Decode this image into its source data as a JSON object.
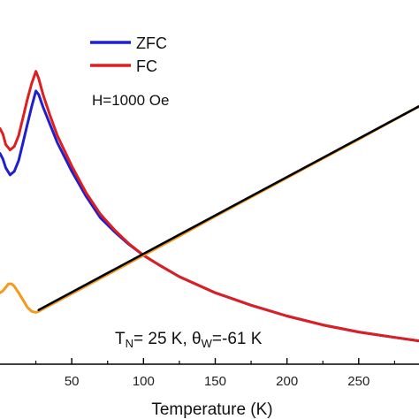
{
  "chart_data": {
    "type": "line",
    "xlabel": "Temperature (K)",
    "x_ticks": [
      50,
      100,
      150,
      200,
      250
    ],
    "xlim": [
      0,
      292
    ],
    "legend": {
      "position": "top-center",
      "entries": [
        "ZFC",
        "FC"
      ]
    },
    "annotations": {
      "field": "H=1000 Oe",
      "tn_symbol": "T",
      "tn_sub": "N",
      "tn_value": "= 25 K, ",
      "theta_symbol": "θ",
      "theta_sub": "W",
      "theta_value": "=-61 K"
    },
    "colors": {
      "zfc": "#1f1fcf",
      "fc": "#dd1f1f",
      "inverse": "#f39a1c",
      "fit": "#000000"
    },
    "series": [
      {
        "name": "ZFC",
        "color": "#1f1fcf",
        "x": [
          0,
          2,
          4,
          7,
          10,
          13,
          16,
          19,
          22,
          25,
          27,
          30,
          35,
          40,
          50,
          60,
          70,
          80,
          90,
          100,
          110,
          125,
          150,
          175,
          200,
          225,
          250,
          275,
          292
        ],
        "y": [
          0.59,
          0.575,
          0.55,
          0.53,
          0.54,
          0.57,
          0.62,
          0.67,
          0.72,
          0.765,
          0.755,
          0.72,
          0.67,
          0.62,
          0.54,
          0.47,
          0.41,
          0.37,
          0.335,
          0.305,
          0.28,
          0.245,
          0.2,
          0.165,
          0.135,
          0.11,
          0.09,
          0.075,
          0.065
        ]
      },
      {
        "name": "FC",
        "color": "#dd1f1f",
        "x": [
          0,
          2,
          4,
          7,
          10,
          13,
          16,
          19,
          22,
          25,
          27,
          30,
          35,
          40,
          50,
          60,
          70,
          80,
          90,
          100,
          110,
          125,
          150,
          175,
          200,
          225,
          250,
          275,
          292
        ],
        "y": [
          0.66,
          0.645,
          0.615,
          0.6,
          0.61,
          0.64,
          0.69,
          0.74,
          0.785,
          0.82,
          0.8,
          0.755,
          0.695,
          0.64,
          0.555,
          0.48,
          0.42,
          0.375,
          0.337,
          0.305,
          0.28,
          0.245,
          0.2,
          0.165,
          0.135,
          0.11,
          0.09,
          0.075,
          0.065
        ]
      },
      {
        "name": "",
        "color": "#f39a1c",
        "x": [
          0,
          2,
          4,
          6,
          8,
          10,
          13,
          16,
          19,
          22,
          25,
          27,
          30,
          40,
          60,
          80,
          100,
          125,
          150,
          175,
          200,
          225,
          250,
          275,
          292
        ],
        "y": [
          0.2,
          0.205,
          0.215,
          0.225,
          0.225,
          0.218,
          0.2,
          0.18,
          0.16,
          0.148,
          0.145,
          0.148,
          0.155,
          0.176,
          0.219,
          0.262,
          0.305,
          0.359,
          0.414,
          0.468,
          0.522,
          0.576,
          0.63,
          0.685,
          0.722
        ]
      },
      {
        "name": "",
        "color": "#000000",
        "x": [
          27,
          292
        ],
        "y": [
          0.152,
          0.722
        ]
      }
    ]
  }
}
